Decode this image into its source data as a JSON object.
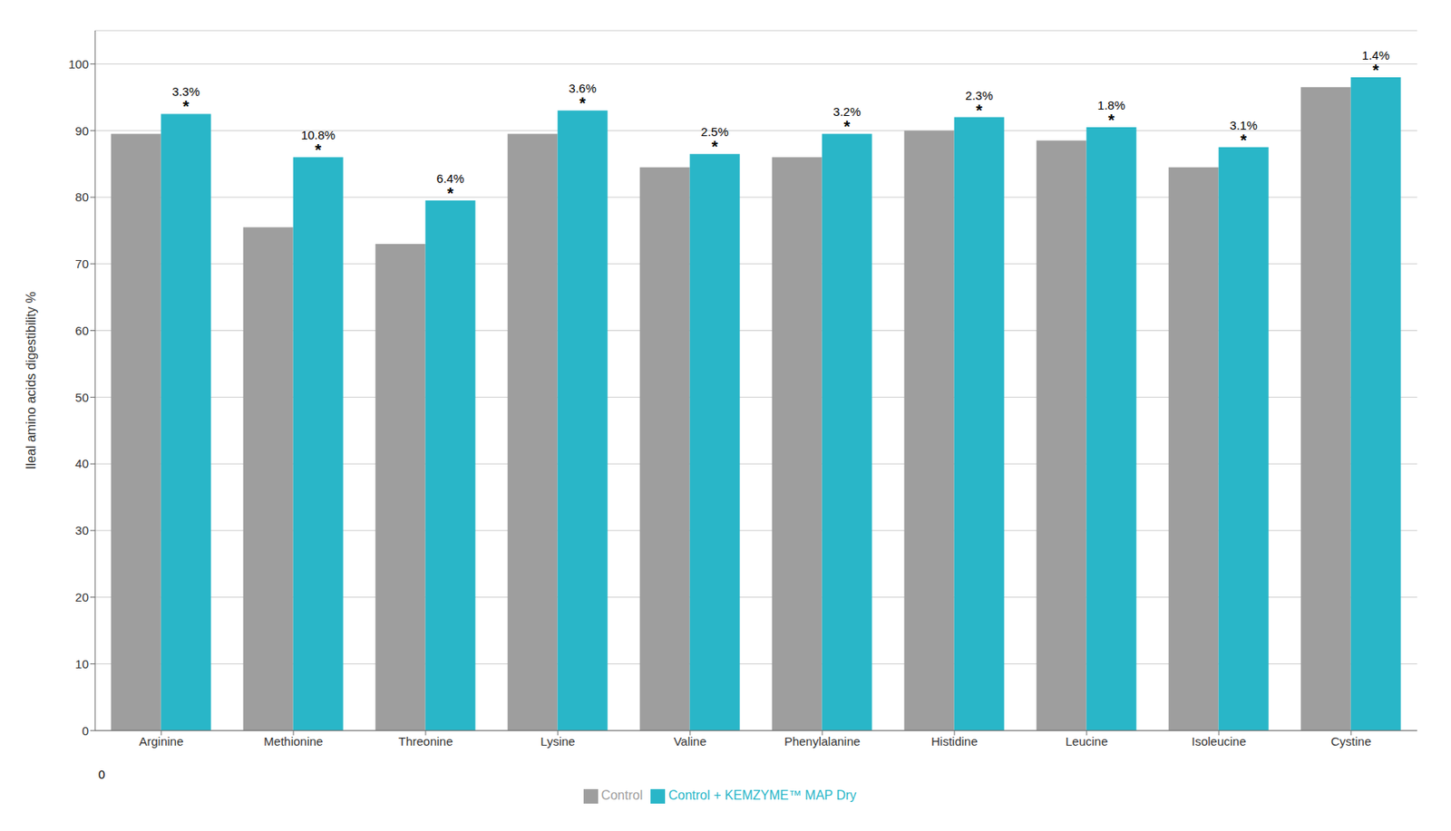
{
  "chart_data": {
    "type": "bar",
    "categories": [
      "Arginine",
      "Methionine",
      "Threonine",
      "Lysine",
      "Valine",
      "Phenylalanine",
      "Histidine",
      "Leucine",
      "Isoleucine",
      "Cystine"
    ],
    "ylabel": "Ileal amino acids digestibility %",
    "series": [
      {
        "name": "Control",
        "color": "#9e9e9e",
        "values": [
          89.5,
          75.5,
          73.0,
          89.5,
          84.5,
          86.0,
          90.0,
          88.5,
          84.5,
          96.5
        ]
      },
      {
        "name": "Control + KEMZYME™ MAP Dry",
        "color": "#29b6c8",
        "values": [
          92.5,
          86.0,
          79.5,
          93.0,
          86.5,
          89.5,
          92.0,
          90.5,
          87.5,
          98.0
        ],
        "annotations": [
          "3.3%",
          "10.8%",
          "6.4%",
          "3.6%",
          "2.5%",
          "3.2%",
          "2.3%",
          "1.8%",
          "3.1%",
          "1.4%"
        ],
        "annotation_mark": "*"
      }
    ],
    "annotations": [
      "0"
    ],
    "ylim": [
      0,
      105
    ],
    "yticks": [
      0,
      10,
      20,
      30,
      40,
      50,
      60,
      70,
      80,
      90,
      100
    ],
    "grid": true,
    "legend": "bottom"
  }
}
